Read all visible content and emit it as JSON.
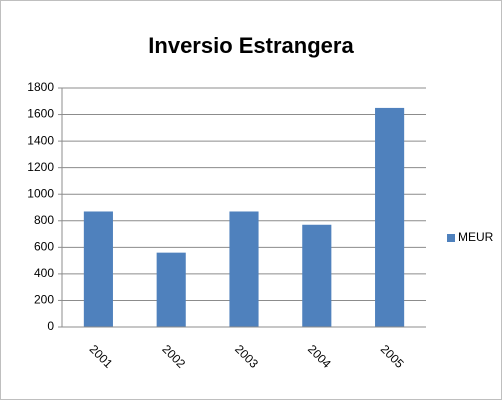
{
  "chart_data": {
    "type": "bar",
    "title": "Inversio Estrangera",
    "categories": [
      "2001",
      "2002",
      "2003",
      "2004",
      "2005"
    ],
    "series": [
      {
        "name": "MEUR",
        "color": "#4f81bd",
        "values": [
          870,
          560,
          870,
          770,
          1650
        ]
      }
    ],
    "ylim": [
      0,
      1800
    ],
    "yticks": [
      0,
      200,
      400,
      600,
      800,
      1000,
      1200,
      1400,
      1600,
      1800
    ],
    "grid": true,
    "legend": "right"
  }
}
